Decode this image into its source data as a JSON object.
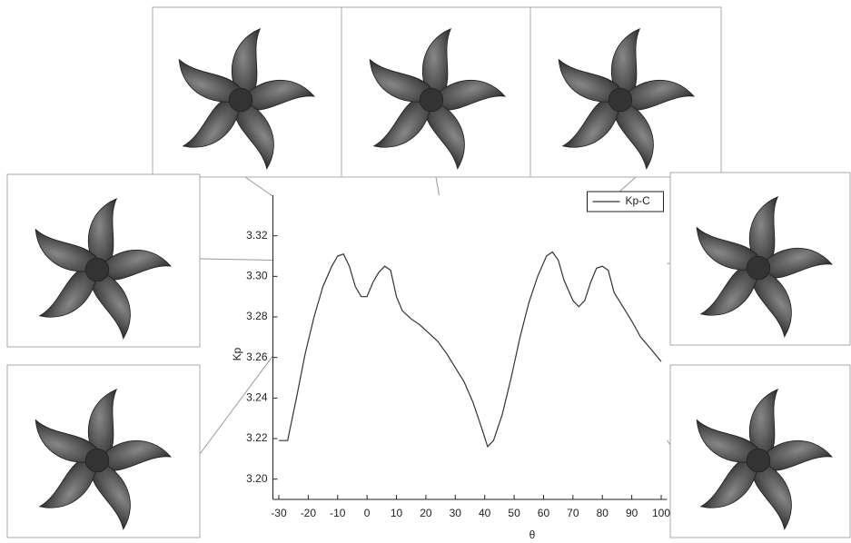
{
  "chart_data": {
    "type": "line",
    "x_label": "θ",
    "y_label": "Kp",
    "x": [
      -30,
      -27,
      -24,
      -21,
      -18,
      -15,
      -12,
      -10,
      -8,
      -6,
      -4,
      -2,
      0,
      2,
      4,
      6,
      8,
      10,
      12,
      15,
      18,
      21,
      24,
      27,
      30,
      33,
      36,
      39,
      41,
      43,
      46,
      49,
      52,
      55,
      58,
      61,
      63,
      65,
      67,
      70,
      72,
      74,
      76,
      78,
      80,
      82,
      84,
      87,
      90,
      93,
      96,
      100
    ],
    "series": [
      {
        "name": "Kp-C",
        "color": "#333333",
        "values": [
          3.219,
          3.219,
          3.24,
          3.262,
          3.28,
          3.295,
          3.305,
          3.31,
          3.311,
          3.305,
          3.295,
          3.29,
          3.29,
          3.297,
          3.302,
          3.305,
          3.303,
          3.29,
          3.283,
          3.279,
          3.276,
          3.272,
          3.268,
          3.262,
          3.255,
          3.248,
          3.238,
          3.225,
          3.216,
          3.219,
          3.232,
          3.25,
          3.27,
          3.287,
          3.3,
          3.31,
          3.312,
          3.308,
          3.298,
          3.288,
          3.285,
          3.288,
          3.297,
          3.304,
          3.305,
          3.303,
          3.292,
          3.285,
          3.278,
          3.27,
          3.265,
          3.258
        ]
      }
    ],
    "xlim": [
      -32,
      102
    ],
    "ylim": [
      3.19,
      3.34
    ],
    "xticks": [
      -30,
      -20,
      -10,
      0,
      10,
      20,
      30,
      40,
      50,
      60,
      70,
      80,
      90,
      100
    ],
    "yticks": [
      {
        "value": 3.2,
        "label": "3.20"
      },
      {
        "value": 3.22,
        "label": "3.22"
      },
      {
        "value": 3.24,
        "label": "3.24"
      },
      {
        "value": 3.26,
        "label": "3.26"
      },
      {
        "value": 3.28,
        "label": "3.28"
      },
      {
        "value": 3.3,
        "label": "3.30"
      },
      {
        "value": 3.32,
        "label": "3.32"
      }
    ],
    "legend": "upper right",
    "grid": false
  }
}
